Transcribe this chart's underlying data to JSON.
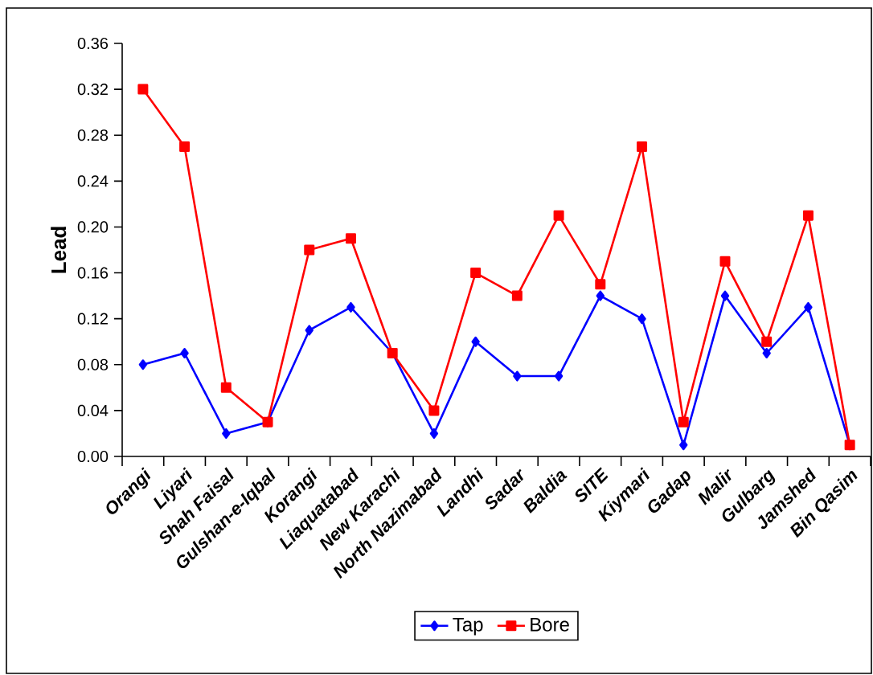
{
  "chart_data": {
    "type": "line",
    "ylabel": "Lead",
    "categories": [
      "Orangi",
      "Liyari",
      "Shah Faisal",
      "Gulshan-e-Iqbal",
      "Korangi",
      "Liaquatabad",
      "New Karachi",
      "North Nazimabad",
      "Landhi",
      "Sadar",
      "Baldia",
      "SITE",
      "Kiymari",
      "Gadap",
      "Malir",
      "Gulbarg",
      "Jamshed",
      "Bin Qasim"
    ],
    "series": [
      {
        "name": "Tap",
        "color": "#0000ff",
        "marker": "diamond",
        "values": [
          0.08,
          0.09,
          0.02,
          0.03,
          0.11,
          0.13,
          0.09,
          0.02,
          0.1,
          0.07,
          0.07,
          0.14,
          0.12,
          0.01,
          0.14,
          0.09,
          0.13,
          0.01
        ]
      },
      {
        "name": "Bore",
        "color": "#ff0000",
        "marker": "square",
        "values": [
          0.32,
          0.27,
          0.06,
          0.03,
          0.18,
          0.19,
          0.09,
          0.04,
          0.16,
          0.14,
          0.21,
          0.15,
          0.27,
          0.03,
          0.17,
          0.1,
          0.21,
          0.01
        ]
      }
    ],
    "ylim": [
      0,
      0.36
    ],
    "yticks": [
      {
        "value": 0,
        "label": "0.00"
      },
      {
        "value": 0.04,
        "label": "0.04"
      },
      {
        "value": 0.08,
        "label": "0.08"
      },
      {
        "value": 0.12,
        "label": "0.12"
      },
      {
        "value": 0.16,
        "label": "0.16"
      },
      {
        "value": 0.2,
        "label": "0.20"
      },
      {
        "value": 0.24,
        "label": "0.24"
      },
      {
        "value": 0.28,
        "label": "0.28"
      },
      {
        "value": 0.32,
        "label": "0.32"
      },
      {
        "value": 0.36,
        "label": "0.36"
      }
    ],
    "grid": false,
    "legend": "bottom",
    "line_style": "solid"
  }
}
